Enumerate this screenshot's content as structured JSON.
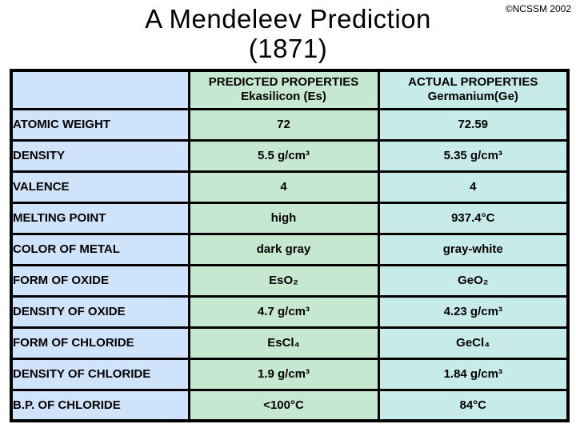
{
  "page": {
    "copyright": "©NCSSM 2002",
    "title_line1": "A Mendeleev Prediction",
    "title_line2": "(1871)"
  },
  "table": {
    "colors": {
      "label_col": "#cfe3fa",
      "predicted_col": "#c6e8d1",
      "actual_col": "#c6ebe8",
      "border": "#000000"
    },
    "header": {
      "corner": "",
      "predicted_line1": "PREDICTED PROPERTIES",
      "predicted_line2": "Ekasilicon (Es)",
      "actual_line1": "ACTUAL PROPERTIES",
      "actual_line2": "Germanium(Ge)"
    },
    "rows": [
      {
        "label": "ATOMIC WEIGHT",
        "predicted": "72",
        "actual": "72.59"
      },
      {
        "label": "DENSITY",
        "predicted": "5.5 g/cm³",
        "actual": "5.35 g/cm³"
      },
      {
        "label": "VALENCE",
        "predicted": "4",
        "actual": "4"
      },
      {
        "label": "MELTING POINT",
        "predicted": "high",
        "actual": "937.4°C"
      },
      {
        "label": "COLOR OF METAL",
        "predicted": "dark gray",
        "actual": "gray-white"
      },
      {
        "label": "FORM OF OXIDE",
        "predicted": "EsO₂",
        "actual": "GeO₂"
      },
      {
        "label": "DENSITY OF OXIDE",
        "predicted": "4.7 g/cm³",
        "actual": "4.23 g/cm³"
      },
      {
        "label": "FORM OF CHLORIDE",
        "predicted": "EsCl₄",
        "actual": "GeCl₄"
      },
      {
        "label": "DENSITY OF CHLORIDE",
        "predicted": "1.9 g/cm³",
        "actual": "1.84 g/cm³"
      },
      {
        "label": "B.P. OF CHLORIDE",
        "predicted": "<100°C",
        "actual": "84°C"
      }
    ]
  }
}
